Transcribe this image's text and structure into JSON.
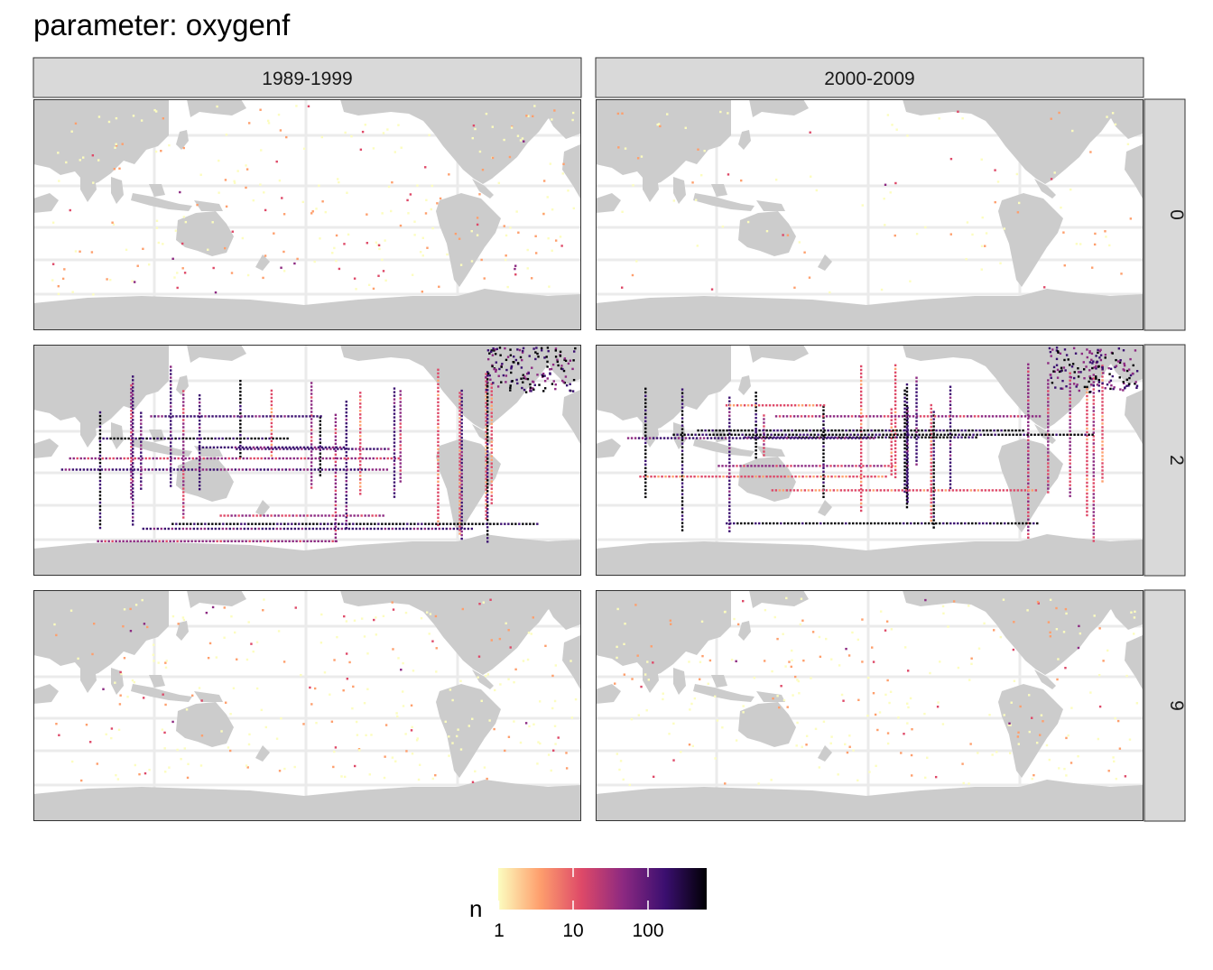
{
  "title": "parameter: oxygenf",
  "columns": [
    "1989-1999",
    "2000-2009"
  ],
  "rows": [
    "0",
    "2",
    "9"
  ],
  "colors": {
    "land": "#cccccc",
    "ocean": "#ffffff",
    "grid": "#ebebeb",
    "strip": "#d9d9d9",
    "border": "#333333"
  },
  "legend": {
    "title": "n",
    "scale": "log10",
    "palette": "magma-reversed",
    "colors": [
      "#fcfdbf",
      "#fe9f6d",
      "#de4968",
      "#8c2981",
      "#3b0f70",
      "#000004"
    ],
    "ticks": [
      "1",
      "10",
      "100"
    ]
  },
  "panels": [
    {
      "column": "1989-1999",
      "row": "0",
      "density": "sparse"
    },
    {
      "column": "2000-2009",
      "row": "0",
      "density": "very sparse"
    },
    {
      "column": "1989-1999",
      "row": "2",
      "density": "dense tracks"
    },
    {
      "column": "2000-2009",
      "row": "2",
      "density": "dense tracks"
    },
    {
      "column": "1989-1999",
      "row": "9",
      "density": "sparse"
    },
    {
      "column": "2000-2009",
      "row": "9",
      "density": "sparse"
    }
  ]
}
